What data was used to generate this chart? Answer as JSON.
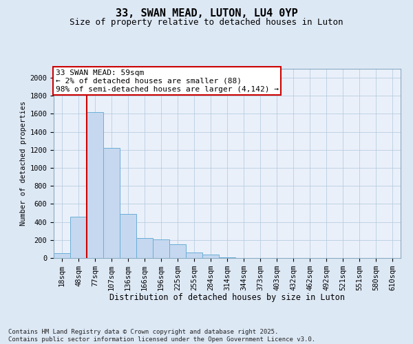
{
  "title_line1": "33, SWAN MEAD, LUTON, LU4 0YP",
  "title_line2": "Size of property relative to detached houses in Luton",
  "xlabel": "Distribution of detached houses by size in Luton",
  "ylabel": "Number of detached properties",
  "categories": [
    "18sqm",
    "48sqm",
    "77sqm",
    "107sqm",
    "136sqm",
    "166sqm",
    "196sqm",
    "225sqm",
    "255sqm",
    "284sqm",
    "314sqm",
    "344sqm",
    "373sqm",
    "403sqm",
    "432sqm",
    "462sqm",
    "492sqm",
    "521sqm",
    "551sqm",
    "580sqm",
    "610sqm"
  ],
  "values": [
    50,
    460,
    1620,
    1220,
    490,
    220,
    210,
    150,
    60,
    40,
    10,
    0,
    0,
    0,
    0,
    0,
    0,
    0,
    0,
    0,
    0
  ],
  "bar_color": "#c5d8f0",
  "bar_edge_color": "#6baed6",
  "vline_x": 1.5,
  "vline_color": "#cc0000",
  "annotation_text": "33 SWAN MEAD: 59sqm\n← 2% of detached houses are smaller (88)\n98% of semi-detached houses are larger (4,142) →",
  "annotation_box_color": "#cc0000",
  "ylim": [
    0,
    2100
  ],
  "yticks": [
    0,
    200,
    400,
    600,
    800,
    1000,
    1200,
    1400,
    1600,
    1800,
    2000
  ],
  "footnote": "Contains HM Land Registry data © Crown copyright and database right 2025.\nContains public sector information licensed under the Open Government Licence v3.0.",
  "bg_color": "#dde8f5",
  "plot_bg_color": "#eaf0fa",
  "grid_color": "#b8cde0",
  "title_fontsize": 11,
  "subtitle_fontsize": 9,
  "axis_fontsize": 7.5,
  "annotation_fontsize": 8,
  "footnote_fontsize": 6.5
}
